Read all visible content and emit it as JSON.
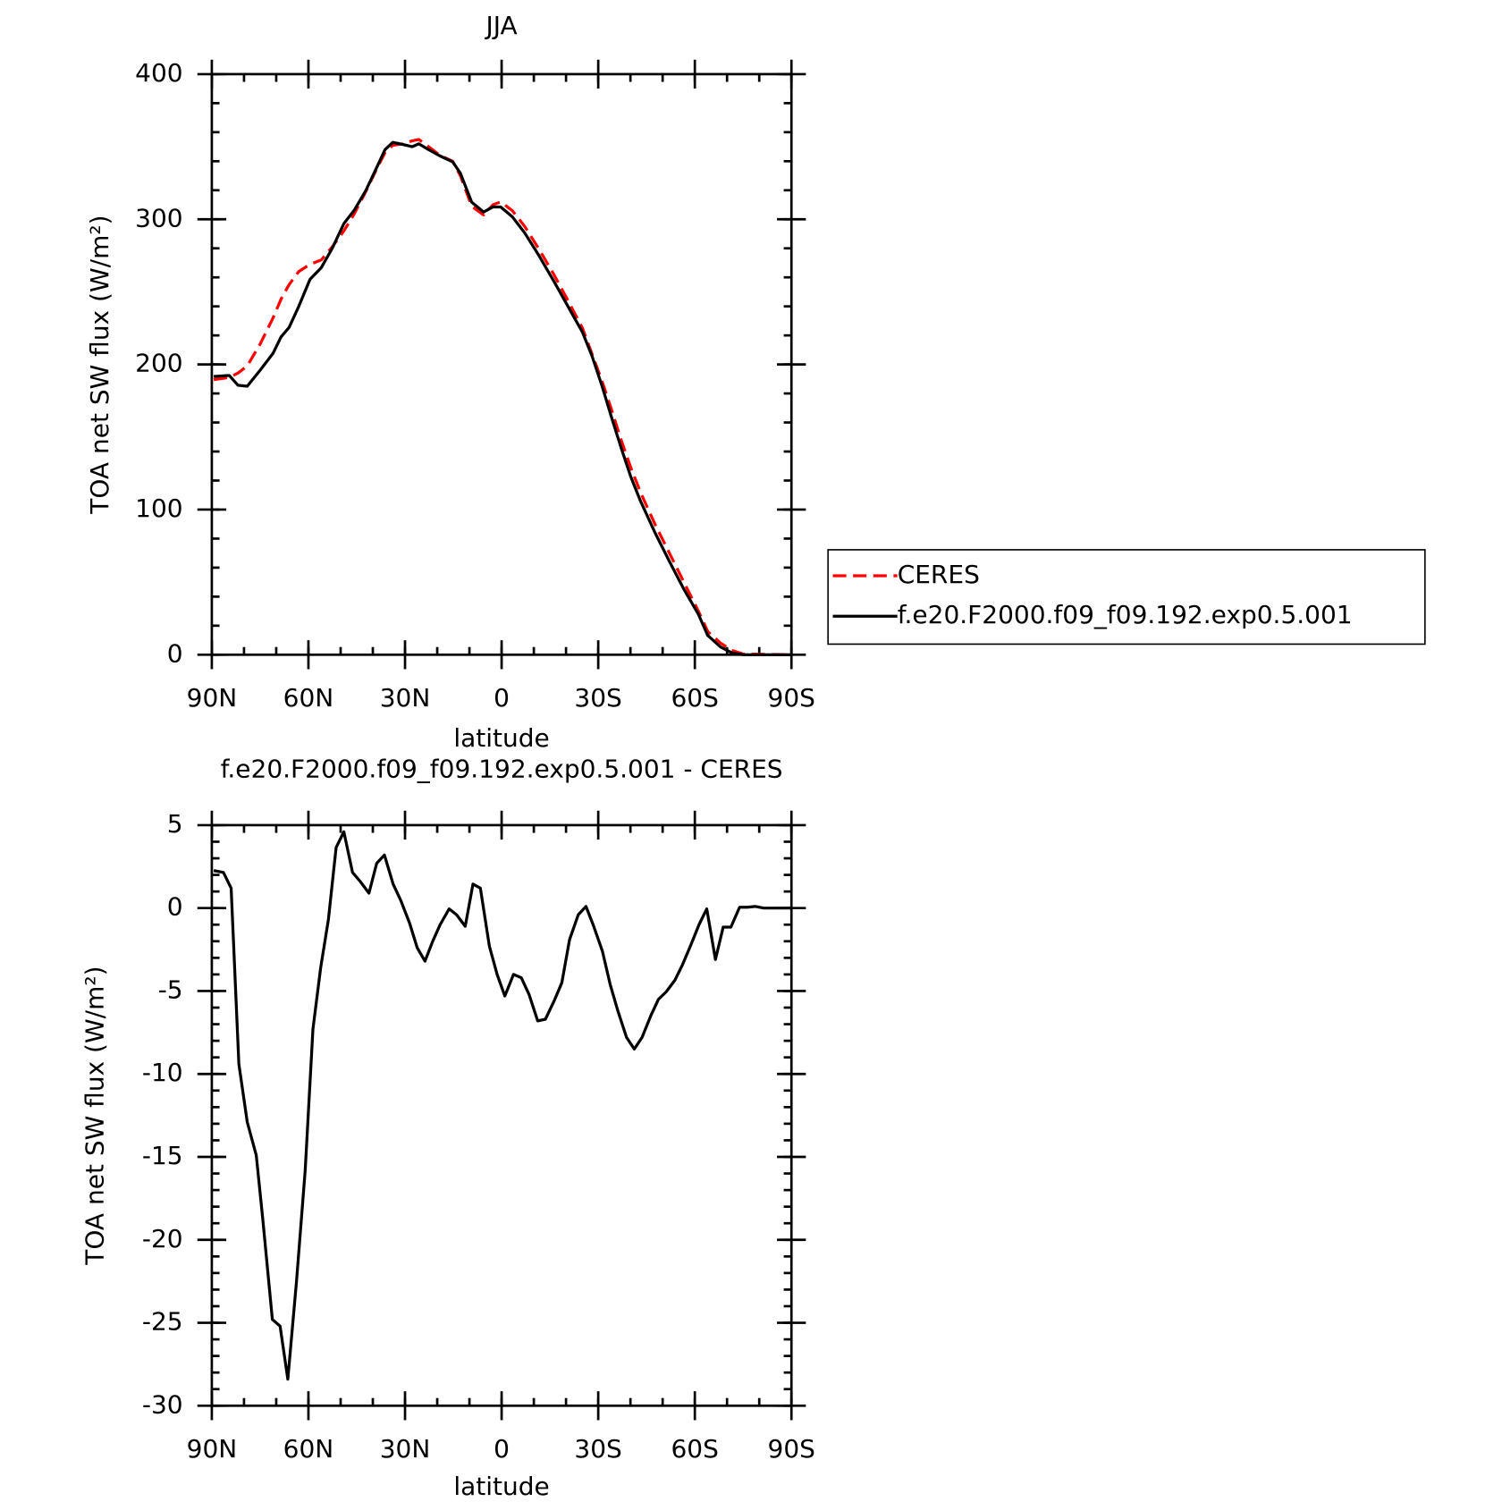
{
  "chart_data": [
    {
      "type": "line",
      "title": "JJA",
      "xlabel": "latitude",
      "ylabel": "TOA net SW flux (W/m²)",
      "x": [
        89.4,
        84.6,
        81.9,
        79,
        75,
        71,
        68.5,
        66,
        63,
        59.5,
        56,
        52.6,
        49,
        45.7,
        42.2,
        38.3,
        36.2,
        33.8,
        30.8,
        27.8,
        25.7,
        22.7,
        19.1,
        15.2,
        12.8,
        9.3,
        5.6,
        2.7,
        0.3,
        -3.3,
        -7.2,
        -11.7,
        -16.2,
        -20.6,
        -25.1,
        -28.1,
        -31.1,
        -34.1,
        -37.1,
        -40.1,
        -43.1,
        -47.6,
        -52.1,
        -56.6,
        -61.1,
        -64,
        -68,
        -71.5,
        -75,
        -90
      ],
      "series": [
        {
          "name": "CERES",
          "color": "#ff0000",
          "style": "dashed",
          "values": [
            189.5,
            191,
            194,
            199,
            214,
            232,
            245,
            255,
            264,
            269,
            272,
            281,
            292,
            304,
            319,
            337,
            346,
            351,
            352,
            354,
            355,
            350,
            344,
            340,
            330,
            309,
            303,
            310,
            312,
            306,
            295,
            279,
            262,
            244,
            225,
            207,
            189,
            169,
            148,
            129,
            112,
            90,
            70,
            50,
            30,
            16,
            8,
            3,
            0.5,
            0
          ]
        },
        {
          "name": "f.e20.F2000.f09_f09.192.exp0.5.001",
          "color": "#000000",
          "style": "solid",
          "values": [
            191.7,
            192.4,
            185.7,
            185,
            196,
            207.6,
            219,
            225.5,
            240,
            258.7,
            266.7,
            280,
            297,
            306.5,
            319.7,
            338,
            348,
            353,
            351.6,
            350,
            352,
            348,
            343.6,
            339.6,
            331.7,
            311.8,
            305,
            308.5,
            308.5,
            301.8,
            290.5,
            274.6,
            257.4,
            240,
            222.2,
            205.6,
            185.7,
            163.8,
            142.6,
            122.7,
            106,
            84.2,
            64.3,
            45.1,
            27.9,
            13.3,
            5.3,
            1.3,
            0,
            0
          ]
        }
      ],
      "xlim": [
        90,
        -90
      ],
      "xticks": [
        {
          "value": 90,
          "label": "90N"
        },
        {
          "value": 60,
          "label": "60N"
        },
        {
          "value": 30,
          "label": "30N"
        },
        0,
        {
          "value": -30,
          "label": "30S"
        },
        {
          "value": -60,
          "label": "60S"
        },
        {
          "value": -90,
          "label": "90S"
        }
      ],
      "ylim": [
        0,
        400
      ],
      "yticks": [
        0,
        100,
        200,
        300,
        400
      ],
      "legend": "right"
    },
    {
      "type": "line",
      "title": "f.e20.F2000.f09_f09.192.exp0.5.001 - CERES",
      "xlabel": "latitude",
      "ylabel": "TOA net SW flux (W/m²)",
      "x": [
        89.4,
        86.4,
        84,
        81.6,
        79,
        76.2,
        74.2,
        71.2,
        68.8,
        66.4,
        63.7,
        61,
        58.6,
        56.2,
        53.8,
        51.4,
        49,
        46.3,
        43.9,
        41.2,
        38.8,
        36.4,
        33.7,
        31.3,
        28.6,
        26.2,
        23.8,
        21.4,
        19.1,
        16.3,
        14,
        11.3,
        8.9,
        6.6,
        3.8,
        1.4,
        -1,
        -3.7,
        -6.1,
        -8.5,
        -11.2,
        -13.6,
        -16.3,
        -18.7,
        -21.1,
        -23.8,
        -26.2,
        -28.6,
        -31.3,
        -33.7,
        -36.1,
        -38.8,
        -41.2,
        -43.6,
        -46.3,
        -48.7,
        -51.1,
        -53.8,
        -56.2,
        -58.6,
        -61.3,
        -63.7,
        -66.4,
        -68.8,
        -71.2,
        -73.9,
        -76.3,
        -78.7,
        -81.4,
        -90
      ],
      "series": [
        {
          "color": "#000000",
          "style": "solid",
          "values": [
            2.26,
            2.15,
            1.2,
            -9.4,
            -12.9,
            -14.9,
            -18.7,
            -24.8,
            -25.2,
            -28.4,
            -22.5,
            -15.8,
            -7.3,
            -3.6,
            -0.7,
            3.65,
            4.6,
            2.15,
            1.6,
            0.9,
            2.7,
            3.2,
            1.45,
            0.45,
            -0.9,
            -2.4,
            -3.2,
            -2,
            -1,
            -0.05,
            -0.4,
            -1.1,
            1.45,
            1.2,
            -2.3,
            -4,
            -5.3,
            -4,
            -4.2,
            -5.2,
            -6.8,
            -6.7,
            -5.6,
            -4.5,
            -1.9,
            -0.4,
            0.1,
            -1.1,
            -2.6,
            -4.6,
            -6.2,
            -7.8,
            -8.5,
            -7.8,
            -6.5,
            -5.5,
            -5.05,
            -4.35,
            -3.4,
            -2.3,
            -1,
            -0.05,
            -3.1,
            -1.15,
            -1.15,
            0.05,
            0.05,
            0.1,
            0,
            0
          ]
        }
      ],
      "xlim": [
        90,
        -90
      ],
      "xticks": [
        {
          "value": 90,
          "label": "90N"
        },
        {
          "value": 60,
          "label": "60N"
        },
        {
          "value": 30,
          "label": "30N"
        },
        0,
        {
          "value": -30,
          "label": "30S"
        },
        {
          "value": -60,
          "label": "60S"
        },
        {
          "value": -90,
          "label": "90S"
        }
      ],
      "ylim": [
        -30,
        5
      ],
      "yticks": [
        5,
        0,
        -5,
        -10,
        -15,
        -20,
        -25,
        -30
      ]
    }
  ]
}
